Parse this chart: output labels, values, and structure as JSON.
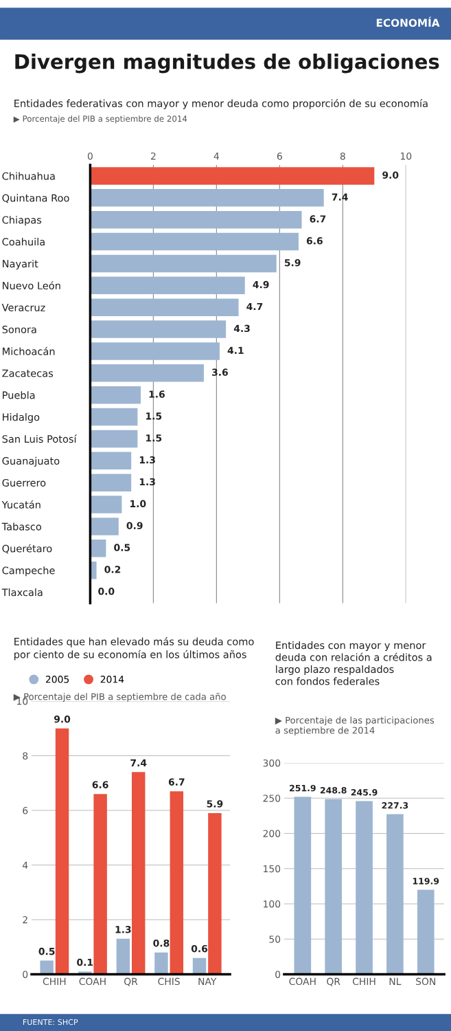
{
  "chart_data": [
    {
      "type": "bar",
      "orientation": "horizontal",
      "title": "Divergen magnitudes de obligaciones",
      "subtitle": "Entidades federativas con mayor y menor deuda como proporción de su economía",
      "annotations": [
        "▶ Porcentaje del PIB a septiembre de 2014",
        "ECONOMÍA"
      ],
      "categories": [
        "Chihuahua",
        "Quintana Roo",
        "Chiapas",
        "Coahuila",
        "Nayarit",
        "Nuevo León",
        "Veracruz",
        "Sonora",
        "Michoacán",
        "Zacatecas",
        "Puebla",
        "Hidalgo",
        "San Luis Potosí",
        "Guanajuato",
        "Guerrero",
        "Yucatán",
        "Tabasco",
        "Querétaro",
        "Campeche",
        "Tlaxcala"
      ],
      "values": [
        9.0,
        7.4,
        6.7,
        6.6,
        5.9,
        4.9,
        4.7,
        4.3,
        4.1,
        3.6,
        1.6,
        1.5,
        1.5,
        1.3,
        1.3,
        1.0,
        0.9,
        0.5,
        0.2,
        0.0
      ],
      "value_labels": [
        "9.0",
        "7.4",
        "6.7",
        "6.6",
        "5.9",
        "4.9",
        "4.7",
        "4.3",
        "4.1",
        "3.6",
        "1.6",
        "1.5",
        "1.5",
        "1.3",
        "1.3",
        "1.0",
        "0.9",
        "0.5",
        "0.2",
        "0.0"
      ],
      "colors": [
        "#e8523f",
        "#9db5d1",
        "#9db5d1",
        "#9db5d1",
        "#9db5d1",
        "#9db5d1",
        "#9db5d1",
        "#9db5d1",
        "#9db5d1",
        "#9db5d1",
        "#9db5d1",
        "#9db5d1",
        "#9db5d1",
        "#9db5d1",
        "#9db5d1",
        "#9db5d1",
        "#9db5d1",
        "#9db5d1",
        "#9db5d1",
        "#9db5d1"
      ],
      "xlim": [
        0,
        10
      ],
      "xticks": [
        0,
        2,
        4,
        6,
        8,
        10
      ],
      "grid": "x"
    },
    {
      "type": "bar",
      "title": "Entidades que han elevado más su deuda como\npor ciento de su economía en los últimos años",
      "subtitle": "▶ Porcentaje del PIB a septiembre de cada año",
      "categories": [
        "CHIH",
        "COAH",
        "QR",
        "CHIS",
        "NAY"
      ],
      "series": [
        {
          "name": "2005",
          "color": "#9db5d1",
          "values": [
            0.5,
            0.1,
            1.3,
            0.8,
            0.6
          ],
          "value_labels": [
            "0.5",
            "0.1",
            "1.3",
            "0.8",
            "0.6"
          ]
        },
        {
          "name": "2014",
          "color": "#e8523f",
          "values": [
            9.0,
            6.6,
            7.4,
            6.7,
            5.9
          ],
          "value_labels": [
            "9.0",
            "6.6",
            "7.4",
            "6.7",
            "5.9"
          ]
        }
      ],
      "ylim": [
        0,
        10
      ],
      "yticks": [
        0,
        2,
        4,
        6,
        8,
        10
      ],
      "grid": "y",
      "legend": "top left"
    },
    {
      "type": "bar",
      "title": "Entidades con mayor y menor\ndeuda con relación a créditos a\nlargo plazo respaldados\ncon fondos federales",
      "subtitle": "▶ Porcentaje de las participaciones\na septiembre de 2014",
      "annotations": [
        "FUENTE: SHCP"
      ],
      "categories": [
        "COAH",
        "QR",
        "CHIH",
        "NL",
        "SON"
      ],
      "values": [
        251.9,
        248.8,
        245.9,
        227.3,
        119.9
      ],
      "value_labels": [
        "251.9",
        "248.8",
        "245.9",
        "227.3",
        "119.9"
      ],
      "color": "#9db5d1",
      "ylim": [
        0,
        300
      ],
      "yticks": [
        0,
        50,
        100,
        150,
        200,
        250,
        300
      ],
      "grid": "y"
    }
  ]
}
